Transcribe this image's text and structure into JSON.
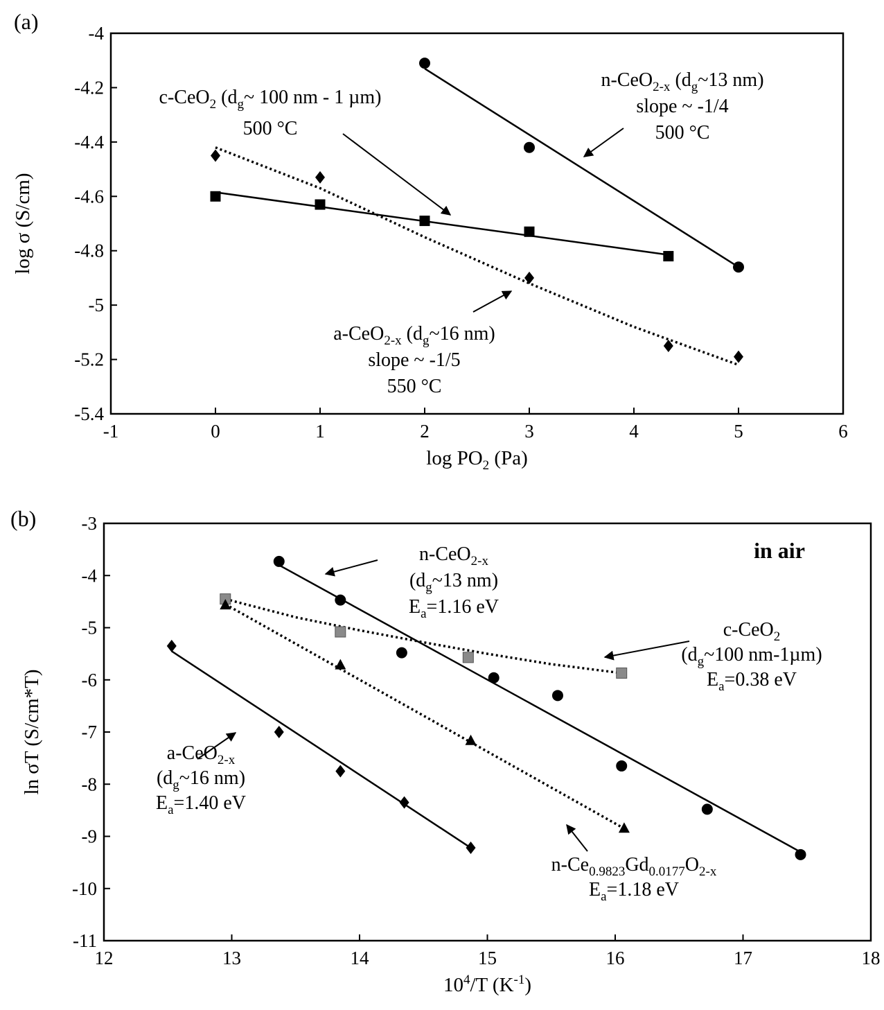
{
  "chart_data": [
    {
      "type": "scatter",
      "panel_label": "(a)",
      "xlabel": {
        "main": "log PO",
        "sub": "2",
        "post": " (Pa)"
      },
      "ylabel": "log σ (S/cm)",
      "xlim": [
        -1,
        6
      ],
      "ylim": [
        -5.4,
        -4
      ],
      "xticks": [
        "-1",
        "0",
        "1",
        "2",
        "3",
        "4",
        "5",
        "6"
      ],
      "yticks": [
        "-4",
        "-4.2",
        "-4.4",
        "-4.6",
        "-4.8",
        "-5",
        "-5.2",
        "-5.4"
      ],
      "grid": false,
      "series": [
        {
          "key": "n-CeO2-x",
          "marker": "circle",
          "line": "solid",
          "points": [
            [
              2,
              -4.11
            ],
            [
              3,
              -4.42
            ],
            [
              5,
              -4.86
            ]
          ],
          "fit": [
            [
              2,
              -4.13
            ],
            [
              5,
              -4.86
            ]
          ]
        },
        {
          "key": "c-CeO2",
          "marker": "square",
          "line": "solid",
          "points": [
            [
              0,
              -4.6
            ],
            [
              1,
              -4.63
            ],
            [
              2,
              -4.69
            ],
            [
              3,
              -4.73
            ],
            [
              4.33,
              -4.82
            ]
          ],
          "fit": [
            [
              0,
              -4.585
            ],
            [
              4.33,
              -4.815
            ]
          ]
        },
        {
          "key": "a-CeO2-x",
          "marker": "diamond",
          "line": "dotted",
          "points": [
            [
              0,
              -4.45
            ],
            [
              1,
              -4.53
            ],
            [
              3,
              -4.9
            ],
            [
              4.33,
              -5.15
            ],
            [
              5,
              -5.19
            ]
          ],
          "fit": [
            [
              0,
              -4.42
            ],
            [
              1,
              -4.57
            ],
            [
              2,
              -4.75
            ],
            [
              3,
              -4.92
            ],
            [
              4,
              -5.08
            ],
            [
              5,
              -5.22
            ]
          ]
        }
      ],
      "annotations": [
        {
          "lines": [
            {
              "parts": [
                [
                  "n-CeO",
                  ""
                ],
                [
                  "2-x",
                  "sub"
                ],
                [
                  " (d",
                  ""
                ],
                [
                  "g",
                  "sub"
                ],
                [
                  "~13 nm)",
                  ""
                ]
              ]
            },
            {
              "parts": [
                [
                  "slope ~ -1/4",
                  ""
                ]
              ]
            },
            {
              "parts": [
                [
                  "500 °C",
                  ""
                ]
              ]
            }
          ]
        },
        {
          "lines": [
            {
              "parts": [
                [
                  "c-CeO",
                  ""
                ],
                [
                  "2",
                  "sub"
                ],
                [
                  " (d",
                  ""
                ],
                [
                  "g",
                  "sub"
                ],
                [
                  "~ 100 nm - 1 µm)",
                  ""
                ]
              ]
            },
            {
              "parts": [
                [
                  "500 °C",
                  ""
                ]
              ]
            }
          ]
        },
        {
          "lines": [
            {
              "parts": [
                [
                  "a-CeO",
                  ""
                ],
                [
                  "2-x",
                  "sub"
                ],
                [
                  " (d",
                  ""
                ],
                [
                  "g",
                  "sub"
                ],
                [
                  "~16 nm)",
                  ""
                ]
              ]
            },
            {
              "parts": [
                [
                  "slope ~ -1/5",
                  ""
                ]
              ]
            },
            {
              "parts": [
                [
                  "550 °C",
                  ""
                ]
              ]
            }
          ]
        }
      ]
    },
    {
      "type": "scatter",
      "panel_label": "(b)",
      "xlabel": {
        "main": "10",
        "sup": "4",
        "post": "/T (K",
        "sup2": "-1",
        "post2": ")"
      },
      "ylabel": "ln σT (S/cm*T)",
      "xlim": [
        12,
        18
      ],
      "ylim": [
        -11,
        -3
      ],
      "xticks": [
        "12",
        "13",
        "14",
        "15",
        "16",
        "17",
        "18"
      ],
      "yticks": [
        "-3",
        "-4",
        "-5",
        "-6",
        "-7",
        "-8",
        "-9",
        "-10",
        "-11"
      ],
      "grid": false,
      "in_plot_label": "in air",
      "series": [
        {
          "key": "n-CeO2-x",
          "marker": "circle",
          "line": "solid",
          "points": [
            [
              13.37,
              -3.73
            ],
            [
              13.85,
              -4.47
            ],
            [
              14.33,
              -5.48
            ],
            [
              15.05,
              -5.96
            ],
            [
              15.55,
              -6.3
            ],
            [
              16.05,
              -7.65
            ],
            [
              16.72,
              -8.48
            ],
            [
              17.45,
              -9.35
            ]
          ],
          "fit": [
            [
              13.37,
              -3.8
            ],
            [
              17.45,
              -9.3
            ]
          ]
        },
        {
          "key": "c-CeO2",
          "marker": "square-gray",
          "line": "dotted",
          "points": [
            [
              12.95,
              -4.45
            ],
            [
              13.85,
              -5.08
            ],
            [
              14.85,
              -5.57
            ],
            [
              16.05,
              -5.87
            ]
          ],
          "fit": [
            [
              12.95,
              -4.45
            ],
            [
              13.5,
              -4.8
            ],
            [
              14.0,
              -5.05
            ],
            [
              14.5,
              -5.28
            ],
            [
              15.0,
              -5.5
            ],
            [
              15.5,
              -5.7
            ],
            [
              16.05,
              -5.87
            ]
          ]
        },
        {
          "key": "n-Ce0.9823Gd0.0177O2-x",
          "marker": "triangle",
          "line": "dotted",
          "points": [
            [
              12.95,
              -4.57
            ],
            [
              13.85,
              -5.72
            ],
            [
              14.87,
              -7.17
            ],
            [
              16.07,
              -8.85
            ]
          ],
          "fit": [
            [
              12.95,
              -4.55
            ],
            [
              16.07,
              -8.85
            ]
          ]
        },
        {
          "key": "a-CeO2-x",
          "marker": "diamond",
          "line": "solid",
          "points": [
            [
              12.53,
              -5.35
            ],
            [
              13.37,
              -7.0
            ],
            [
              13.85,
              -7.75
            ],
            [
              14.35,
              -8.35
            ],
            [
              14.87,
              -9.22
            ]
          ],
          "fit": [
            [
              12.53,
              -5.45
            ],
            [
              14.87,
              -9.22
            ]
          ]
        }
      ],
      "annotations": [
        {
          "lines": [
            {
              "parts": [
                [
                  "n-CeO",
                  ""
                ],
                [
                  "2-x",
                  "sub"
                ]
              ]
            },
            {
              "parts": [
                [
                  "(d",
                  ""
                ],
                [
                  "g",
                  "sub"
                ],
                [
                  "~13 nm)",
                  ""
                ]
              ]
            },
            {
              "parts": [
                [
                  "E",
                  ""
                ],
                [
                  "a",
                  "sub"
                ],
                [
                  "=1.16 eV",
                  ""
                ]
              ]
            }
          ]
        },
        {
          "lines": [
            {
              "parts": [
                [
                  "c-CeO",
                  ""
                ],
                [
                  "2",
                  "sub"
                ]
              ]
            },
            {
              "parts": [
                [
                  "(d",
                  ""
                ],
                [
                  "g",
                  "sub"
                ],
                [
                  "~100 nm-1µm)",
                  ""
                ]
              ]
            },
            {
              "parts": [
                [
                  "E",
                  ""
                ],
                [
                  "a",
                  "sub"
                ],
                [
                  "=0.38 eV",
                  ""
                ]
              ]
            }
          ]
        },
        {
          "lines": [
            {
              "parts": [
                [
                  "a-CeO",
                  ""
                ],
                [
                  "2-x",
                  "sub"
                ]
              ]
            },
            {
              "parts": [
                [
                  "(d",
                  ""
                ],
                [
                  "g",
                  "sub"
                ],
                [
                  "~16 nm)",
                  ""
                ]
              ]
            },
            {
              "parts": [
                [
                  "E",
                  ""
                ],
                [
                  "a",
                  "sub"
                ],
                [
                  "=1.40 eV",
                  ""
                ]
              ]
            }
          ]
        },
        {
          "lines": [
            {
              "parts": [
                [
                  "n-Ce",
                  ""
                ],
                [
                  "0.9823",
                  "sub"
                ],
                [
                  "Gd",
                  ""
                ],
                [
                  "0.0177",
                  "sub"
                ],
                [
                  "O",
                  ""
                ],
                [
                  "2-x",
                  "sub"
                ]
              ]
            },
            {
              "parts": [
                [
                  "E",
                  ""
                ],
                [
                  "a",
                  "sub"
                ],
                [
                  "=1.18 eV",
                  ""
                ]
              ]
            }
          ]
        }
      ]
    }
  ]
}
